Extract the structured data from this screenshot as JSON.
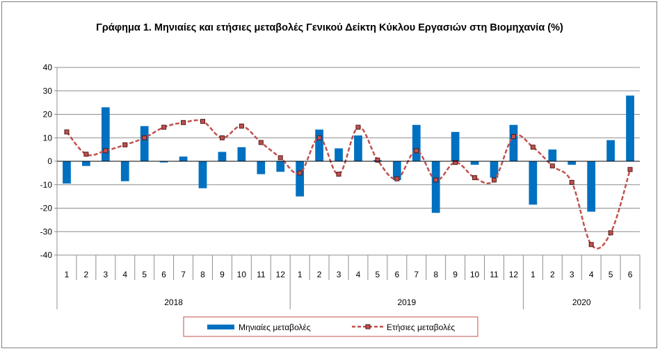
{
  "chart_data": {
    "type": "bar",
    "title": "Γράφημα 1. Μηνιαίες και ετήσιες μεταβολές  Γενικού Δείκτη Κύκλου Εργασιών στη Βιομηχανία (%)",
    "categories": [
      "1",
      "2",
      "3",
      "4",
      "5",
      "6",
      "7",
      "8",
      "9",
      "10",
      "11",
      "12",
      "1",
      "2",
      "3",
      "4",
      "5",
      "6",
      "7",
      "8",
      "9",
      "10",
      "11",
      "12",
      "1",
      "2",
      "3",
      "4",
      "5",
      "6"
    ],
    "groups": [
      {
        "label": "2018",
        "count": 12
      },
      {
        "label": "2019",
        "count": 12
      },
      {
        "label": "2020",
        "count": 6
      }
    ],
    "ylim": [
      -40,
      40
    ],
    "yticks": [
      40,
      30,
      20,
      10,
      0,
      -10,
      -20,
      -30,
      -40
    ],
    "grid": true,
    "legend": "bottom",
    "series": [
      {
        "name": "Μηνιαίες μεταβολές",
        "kind": "bar",
        "color": "#0070C0",
        "values": [
          -9.5,
          -2,
          23,
          -8.5,
          15,
          -0.5,
          2,
          -11.5,
          4,
          6,
          -5.5,
          -4.5,
          -15,
          13.5,
          5.5,
          11,
          0.5,
          -8,
          15.5,
          -22,
          12.5,
          -1.5,
          -7,
          15.5,
          -18.5,
          5,
          -1.5,
          -21.5,
          9,
          28
        ]
      },
      {
        "name": "Ετήσιες μεταβολές",
        "kind": "line",
        "color": "#C0504D",
        "values": [
          12.5,
          3,
          4.5,
          7,
          10,
          14.5,
          16.5,
          17,
          10,
          15,
          8,
          1.5,
          -5,
          10,
          -5.5,
          14.5,
          0.5,
          -7.5,
          4.5,
          -8,
          -0.5,
          -7,
          -8,
          10.5,
          6,
          -2,
          -9,
          -35.5,
          -30.5,
          -3.5
        ]
      }
    ]
  }
}
